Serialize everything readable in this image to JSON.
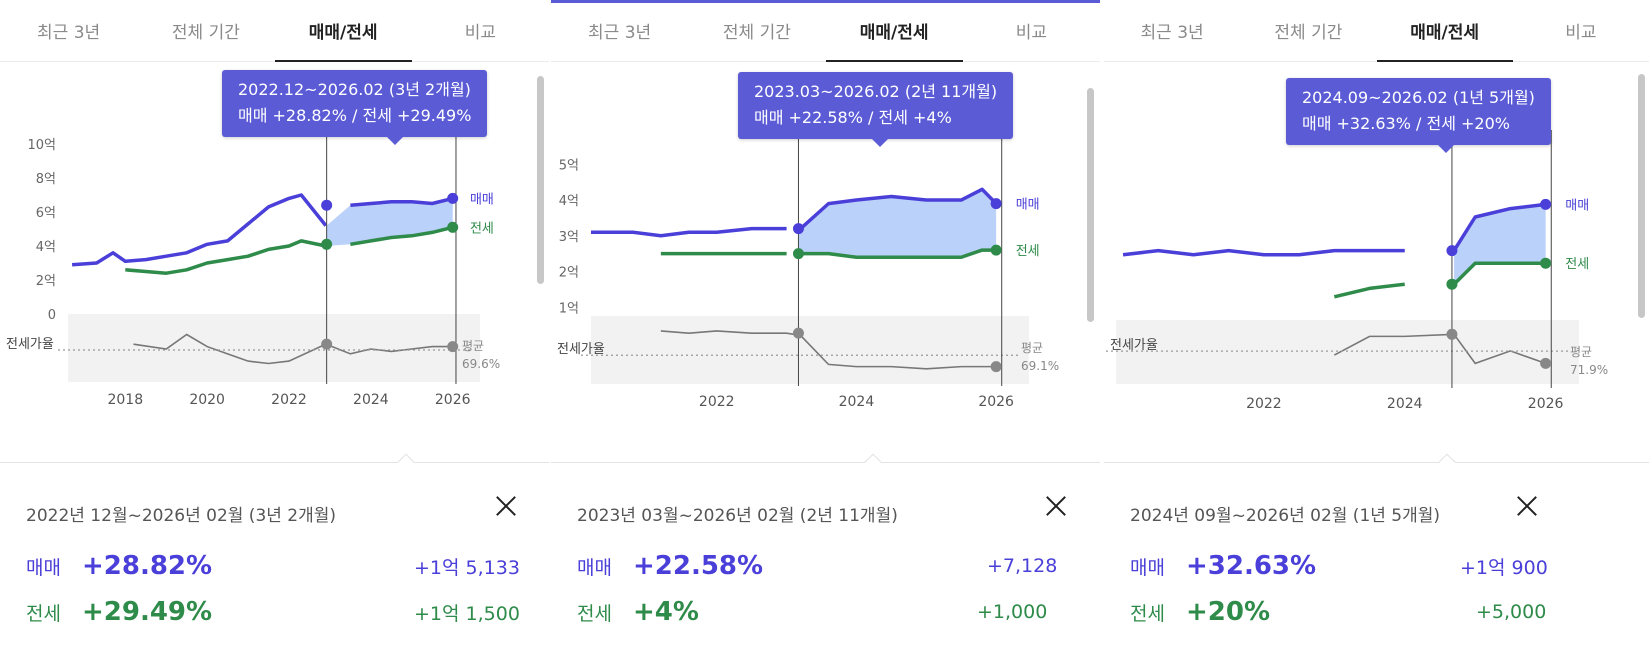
{
  "colors": {
    "sale": "#4a3fd8",
    "jeonse": "#2e8b4a",
    "accent": "#5b5bd6",
    "muted": "#8a8a8a",
    "ratio": "#777777",
    "band": "#f2f2f2"
  },
  "panels": [
    {
      "tabs": [
        "최근 3년",
        "전체 기간",
        "매매/전세",
        "비교"
      ],
      "active_tab": 2,
      "tooltip": {
        "range": "2022.12~2026.02 (3년 2개월)",
        "values": "매매 +28.82%  /  전세 +29.49%"
      },
      "chart_labels": {
        "y_ticks": [
          "10억",
          "8억",
          "6억",
          "4억",
          "2억",
          "0"
        ],
        "x_ticks": [
          "2018",
          "2020",
          "2022",
          "2024",
          "2026"
        ],
        "ratio_label": "전세가율",
        "avg_label": "평균",
        "avg_value": "69.6%",
        "sale_label": "매매",
        "jeonse_label": "전세"
      },
      "chart_data": {
        "type": "line",
        "x": [
          2016.7,
          2017.3,
          2017.7,
          2018.0,
          2018.5,
          2019.0,
          2019.5,
          2020.0,
          2020.5,
          2021.0,
          2021.5,
          2022.0,
          2022.3,
          2022.9,
          2023.5,
          2024.0,
          2024.5,
          2025.0,
          2025.5,
          2026.0
        ],
        "ylim": [
          0,
          10
        ],
        "series": [
          {
            "name": "매매",
            "values": [
              2.9,
              3.0,
              3.6,
              3.1,
              3.2,
              3.4,
              3.6,
              4.1,
              4.3,
              5.3,
              6.3,
              6.8,
              7.0,
              5.2,
              6.4,
              6.5,
              6.6,
              6.6,
              6.5,
              6.8
            ]
          },
          {
            "name": "전세",
            "values": [
              null,
              null,
              null,
              2.6,
              2.5,
              2.4,
              2.6,
              3.0,
              3.2,
              3.4,
              3.8,
              4.0,
              4.3,
              4.0,
              4.1,
              4.3,
              4.5,
              4.6,
              4.8,
              5.1
            ]
          }
        ],
        "ratio": {
          "x": [
            2018.2,
            2019.0,
            2019.5,
            2020.0,
            2020.5,
            2021.0,
            2021.5,
            2022.0,
            2022.9,
            2023.5,
            2024.0,
            2024.5,
            2025.0,
            2025.5,
            2026.0
          ],
          "values": [
            72,
            70,
            76,
            71,
            68,
            65,
            64,
            65,
            72,
            68,
            70,
            69,
            70,
            71,
            71
          ],
          "average": 69.6
        },
        "selection": {
          "start": 2022.92,
          "end": 2026.08
        }
      },
      "summary": {
        "period": "2022년 12월~2026년 02월 (3년 2개월)",
        "sale_label": "매매",
        "sale_pct": "+28.82%",
        "sale_amount": "+1억 5,133",
        "jeonse_label": "전세",
        "jeonse_pct": "+29.49%",
        "jeonse_amount": "+1억 1,500"
      }
    },
    {
      "tabs": [
        "최근 3년",
        "전체 기간",
        "매매/전세",
        "비교"
      ],
      "active_tab": 2,
      "tooltip": {
        "range": "2023.03~2026.02 (2년 11개월)",
        "values": "매매 +22.58%  /  전세 +4%"
      },
      "chart_labels": {
        "y_ticks": [
          "5억",
          "4억",
          "3억",
          "2억",
          "1억"
        ],
        "x_ticks": [
          "2022",
          "2024",
          "2026"
        ],
        "ratio_label": "전세가율",
        "avg_label": "평균",
        "avg_value": "69.1%",
        "sale_label": "매매",
        "jeonse_label": "전세"
      },
      "chart_data": {
        "type": "line",
        "x": [
          2020.2,
          2020.8,
          2021.2,
          2021.6,
          2022.0,
          2022.5,
          2023.0,
          2023.2,
          2023.6,
          2024.0,
          2024.5,
          2025.0,
          2025.5,
          2025.8,
          2026.0
        ],
        "ylim": [
          0.7,
          5.4
        ],
        "series": [
          {
            "name": "매매",
            "values": [
              3.1,
              3.1,
              3.0,
              3.1,
              3.1,
              3.2,
              3.2,
              3.2,
              3.9,
              4.0,
              4.1,
              4.0,
              4.0,
              4.3,
              3.9
            ]
          },
          {
            "name": "전세",
            "values": [
              null,
              null,
              2.5,
              2.5,
              2.5,
              2.5,
              2.5,
              2.5,
              2.5,
              2.4,
              2.4,
              2.4,
              2.4,
              2.6,
              2.6
            ]
          }
        ],
        "ratio": {
          "x": [
            2021.2,
            2021.6,
            2022.0,
            2022.5,
            2023.0,
            2023.2,
            2023.6,
            2024.0,
            2024.5,
            2025.0,
            2025.5,
            2026.0
          ],
          "values": [
            80,
            79,
            80,
            79,
            79,
            78,
            65,
            64,
            64,
            63,
            64,
            64
          ],
          "average": 69.1
        },
        "selection": {
          "start": 2023.17,
          "end": 2026.08
        }
      },
      "summary": {
        "period": "2023년 03월~2026년 02월 (2년 11개월)",
        "sale_label": "매매",
        "sale_pct": "+22.58%",
        "sale_amount": "+7,128",
        "jeonse_label": "전세",
        "jeonse_pct": "+4%",
        "jeonse_amount": "+1,000"
      }
    },
    {
      "tabs": [
        "최근 3년",
        "전체 기간",
        "매매/전세",
        "비교"
      ],
      "active_tab": 2,
      "tooltip": {
        "range": "2024.09~2026.02 (1년 5개월)",
        "values": "매매 +32.63%  /  전세 +20%"
      },
      "chart_labels": {
        "y_ticks": [
          "5억",
          "4억",
          "3억",
          "2억"
        ],
        "x_ticks": [
          "2022",
          "2024",
          "2026"
        ],
        "ratio_label": "전세가율",
        "avg_label": "평균",
        "avg_value": "71.9%",
        "sale_label": "매매",
        "jeonse_label": "전세"
      },
      "chart_data": {
        "type": "line",
        "x": [
          2020.0,
          2020.5,
          2021.0,
          2021.5,
          2022.0,
          2022.5,
          2023.0,
          2023.5,
          2024.0,
          2024.7,
          2025.0,
          2025.5,
          2026.0
        ],
        "ylim": [
          1.6,
          5.6
        ],
        "series": [
          {
            "name": "매매",
            "values": [
              3.2,
              3.3,
              3.2,
              3.3,
              3.2,
              3.2,
              3.3,
              3.3,
              3.3,
              3.3,
              4.1,
              4.3,
              4.4
            ]
          },
          {
            "name": "전세",
            "values": [
              null,
              null,
              null,
              null,
              null,
              null,
              2.2,
              2.4,
              2.5,
              2.5,
              3.0,
              3.0,
              3.0
            ]
          }
        ],
        "ratio": {
          "x": [
            2023.0,
            2023.5,
            2024.0,
            2024.7,
            2025.0,
            2025.5,
            2026.0
          ],
          "values": [
            70,
            79,
            79,
            80,
            66,
            72,
            66
          ],
          "average": 71.9
        },
        "selection": {
          "start": 2024.67,
          "end": 2026.08
        }
      },
      "summary": {
        "period": "2024년 09월~2026년 02월 (1년 5개월)",
        "sale_label": "매매",
        "sale_pct": "+32.63%",
        "sale_amount": "+1억 900",
        "jeonse_label": "전세",
        "jeonse_pct": "+20%",
        "jeonse_amount": "+5,000"
      }
    }
  ]
}
